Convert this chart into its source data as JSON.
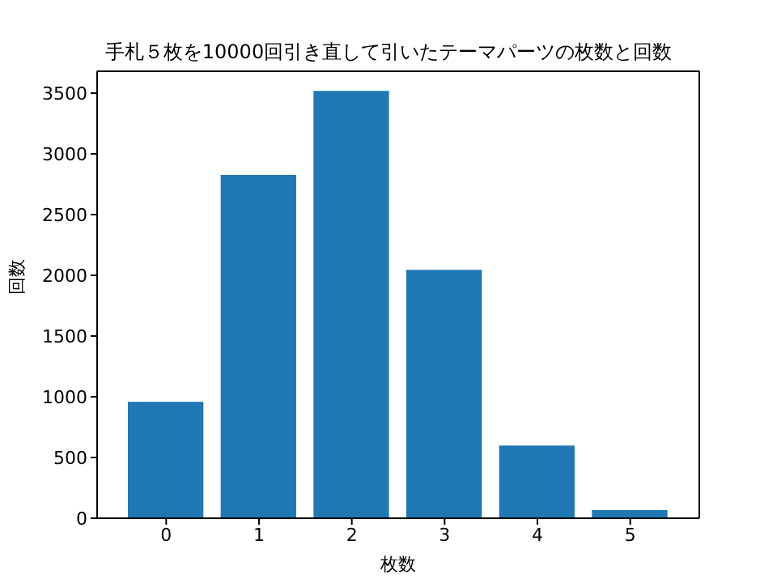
{
  "chart_data": {
    "type": "bar",
    "title": "手札５枚を10000回引き直して引いたテーマパーツの枚数と回数",
    "xlabel": "枚数",
    "ylabel": "回数",
    "categories": [
      "0",
      "1",
      "2",
      "3",
      "4",
      "5"
    ],
    "values": [
      958,
      2826,
      3518,
      2045,
      599,
      67
    ],
    "color": "#1f77b4",
    "ylim": [
      0,
      3680
    ],
    "yticks": [
      0,
      500,
      1000,
      1500,
      2000,
      2500,
      3000,
      3500
    ],
    "grid": false
  }
}
